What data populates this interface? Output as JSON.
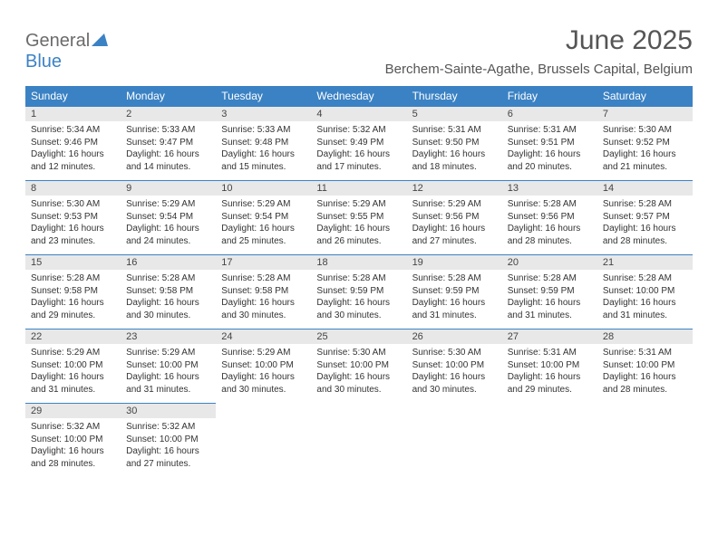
{
  "logo": {
    "part1": "General",
    "part2": "Blue"
  },
  "title": "June 2025",
  "location": "Berchem-Sainte-Agathe, Brussels Capital, Belgium",
  "colors": {
    "header_bg": "#3b82c4",
    "header_text": "#ffffff",
    "daynum_bg": "#e8e8e8",
    "daynum_border": "#3b82c4",
    "body_text": "#333333",
    "title_text": "#555555",
    "logo_gray": "#6b6b6b",
    "logo_blue": "#3b82c4",
    "page_bg": "#ffffff"
  },
  "weekdays": [
    "Sunday",
    "Monday",
    "Tuesday",
    "Wednesday",
    "Thursday",
    "Friday",
    "Saturday"
  ],
  "weeks": [
    [
      {
        "n": "1",
        "sr": "Sunrise: 5:34 AM",
        "ss": "Sunset: 9:46 PM",
        "d1": "Daylight: 16 hours",
        "d2": "and 12 minutes."
      },
      {
        "n": "2",
        "sr": "Sunrise: 5:33 AM",
        "ss": "Sunset: 9:47 PM",
        "d1": "Daylight: 16 hours",
        "d2": "and 14 minutes."
      },
      {
        "n": "3",
        "sr": "Sunrise: 5:33 AM",
        "ss": "Sunset: 9:48 PM",
        "d1": "Daylight: 16 hours",
        "d2": "and 15 minutes."
      },
      {
        "n": "4",
        "sr": "Sunrise: 5:32 AM",
        "ss": "Sunset: 9:49 PM",
        "d1": "Daylight: 16 hours",
        "d2": "and 17 minutes."
      },
      {
        "n": "5",
        "sr": "Sunrise: 5:31 AM",
        "ss": "Sunset: 9:50 PM",
        "d1": "Daylight: 16 hours",
        "d2": "and 18 minutes."
      },
      {
        "n": "6",
        "sr": "Sunrise: 5:31 AM",
        "ss": "Sunset: 9:51 PM",
        "d1": "Daylight: 16 hours",
        "d2": "and 20 minutes."
      },
      {
        "n": "7",
        "sr": "Sunrise: 5:30 AM",
        "ss": "Sunset: 9:52 PM",
        "d1": "Daylight: 16 hours",
        "d2": "and 21 minutes."
      }
    ],
    [
      {
        "n": "8",
        "sr": "Sunrise: 5:30 AM",
        "ss": "Sunset: 9:53 PM",
        "d1": "Daylight: 16 hours",
        "d2": "and 23 minutes."
      },
      {
        "n": "9",
        "sr": "Sunrise: 5:29 AM",
        "ss": "Sunset: 9:54 PM",
        "d1": "Daylight: 16 hours",
        "d2": "and 24 minutes."
      },
      {
        "n": "10",
        "sr": "Sunrise: 5:29 AM",
        "ss": "Sunset: 9:54 PM",
        "d1": "Daylight: 16 hours",
        "d2": "and 25 minutes."
      },
      {
        "n": "11",
        "sr": "Sunrise: 5:29 AM",
        "ss": "Sunset: 9:55 PM",
        "d1": "Daylight: 16 hours",
        "d2": "and 26 minutes."
      },
      {
        "n": "12",
        "sr": "Sunrise: 5:29 AM",
        "ss": "Sunset: 9:56 PM",
        "d1": "Daylight: 16 hours",
        "d2": "and 27 minutes."
      },
      {
        "n": "13",
        "sr": "Sunrise: 5:28 AM",
        "ss": "Sunset: 9:56 PM",
        "d1": "Daylight: 16 hours",
        "d2": "and 28 minutes."
      },
      {
        "n": "14",
        "sr": "Sunrise: 5:28 AM",
        "ss": "Sunset: 9:57 PM",
        "d1": "Daylight: 16 hours",
        "d2": "and 28 minutes."
      }
    ],
    [
      {
        "n": "15",
        "sr": "Sunrise: 5:28 AM",
        "ss": "Sunset: 9:58 PM",
        "d1": "Daylight: 16 hours",
        "d2": "and 29 minutes."
      },
      {
        "n": "16",
        "sr": "Sunrise: 5:28 AM",
        "ss": "Sunset: 9:58 PM",
        "d1": "Daylight: 16 hours",
        "d2": "and 30 minutes."
      },
      {
        "n": "17",
        "sr": "Sunrise: 5:28 AM",
        "ss": "Sunset: 9:58 PM",
        "d1": "Daylight: 16 hours",
        "d2": "and 30 minutes."
      },
      {
        "n": "18",
        "sr": "Sunrise: 5:28 AM",
        "ss": "Sunset: 9:59 PM",
        "d1": "Daylight: 16 hours",
        "d2": "and 30 minutes."
      },
      {
        "n": "19",
        "sr": "Sunrise: 5:28 AM",
        "ss": "Sunset: 9:59 PM",
        "d1": "Daylight: 16 hours",
        "d2": "and 31 minutes."
      },
      {
        "n": "20",
        "sr": "Sunrise: 5:28 AM",
        "ss": "Sunset: 9:59 PM",
        "d1": "Daylight: 16 hours",
        "d2": "and 31 minutes."
      },
      {
        "n": "21",
        "sr": "Sunrise: 5:28 AM",
        "ss": "Sunset: 10:00 PM",
        "d1": "Daylight: 16 hours",
        "d2": "and 31 minutes."
      }
    ],
    [
      {
        "n": "22",
        "sr": "Sunrise: 5:29 AM",
        "ss": "Sunset: 10:00 PM",
        "d1": "Daylight: 16 hours",
        "d2": "and 31 minutes."
      },
      {
        "n": "23",
        "sr": "Sunrise: 5:29 AM",
        "ss": "Sunset: 10:00 PM",
        "d1": "Daylight: 16 hours",
        "d2": "and 31 minutes."
      },
      {
        "n": "24",
        "sr": "Sunrise: 5:29 AM",
        "ss": "Sunset: 10:00 PM",
        "d1": "Daylight: 16 hours",
        "d2": "and 30 minutes."
      },
      {
        "n": "25",
        "sr": "Sunrise: 5:30 AM",
        "ss": "Sunset: 10:00 PM",
        "d1": "Daylight: 16 hours",
        "d2": "and 30 minutes."
      },
      {
        "n": "26",
        "sr": "Sunrise: 5:30 AM",
        "ss": "Sunset: 10:00 PM",
        "d1": "Daylight: 16 hours",
        "d2": "and 30 minutes."
      },
      {
        "n": "27",
        "sr": "Sunrise: 5:31 AM",
        "ss": "Sunset: 10:00 PM",
        "d1": "Daylight: 16 hours",
        "d2": "and 29 minutes."
      },
      {
        "n": "28",
        "sr": "Sunrise: 5:31 AM",
        "ss": "Sunset: 10:00 PM",
        "d1": "Daylight: 16 hours",
        "d2": "and 28 minutes."
      }
    ],
    [
      {
        "n": "29",
        "sr": "Sunrise: 5:32 AM",
        "ss": "Sunset: 10:00 PM",
        "d1": "Daylight: 16 hours",
        "d2": "and 28 minutes."
      },
      {
        "n": "30",
        "sr": "Sunrise: 5:32 AM",
        "ss": "Sunset: 10:00 PM",
        "d1": "Daylight: 16 hours",
        "d2": "and 27 minutes."
      },
      null,
      null,
      null,
      null,
      null
    ]
  ]
}
